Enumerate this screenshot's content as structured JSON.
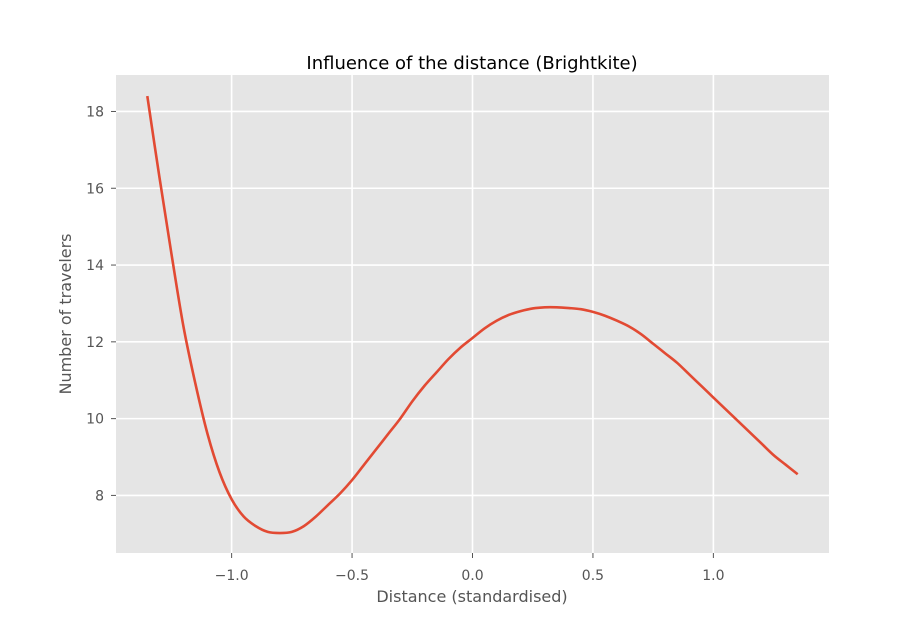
{
  "chart_data": {
    "type": "line",
    "title": "Influence of the distance (Brightkite)",
    "xlabel": "Distance (standardised)",
    "ylabel": "Number of travelers",
    "xlim": [
      -1.48,
      1.48
    ],
    "ylim": [
      6.5,
      18.95
    ],
    "xticks": [
      -1.0,
      -0.5,
      0.0,
      0.5,
      1.0
    ],
    "xtick_labels": [
      "−1.0",
      "−0.5",
      "0.0",
      "0.5",
      "1.0"
    ],
    "yticks": [
      8,
      10,
      12,
      14,
      16,
      18
    ],
    "ytick_labels": [
      "8",
      "10",
      "12",
      "14",
      "16",
      "18"
    ],
    "grid": true,
    "style": "ggplot",
    "colors": {
      "background": "#e5e5e5",
      "grid": "#ffffff",
      "line": "#e24a33",
      "tick_text": "#555555",
      "title": "#000000"
    },
    "series": [
      {
        "x": [
          -1.35,
          -1.3,
          -1.25,
          -1.2,
          -1.15,
          -1.1,
          -1.05,
          -1.0,
          -0.95,
          -0.9,
          -0.85,
          -0.8,
          -0.75,
          -0.7,
          -0.65,
          -0.6,
          -0.55,
          -0.5,
          -0.45,
          -0.4,
          -0.35,
          -0.3,
          -0.25,
          -0.2,
          -0.15,
          -0.1,
          -0.05,
          0.0,
          0.05,
          0.1,
          0.15,
          0.2,
          0.25,
          0.3,
          0.35,
          0.4,
          0.45,
          0.5,
          0.55,
          0.6,
          0.65,
          0.7,
          0.75,
          0.8,
          0.85,
          0.9,
          0.95,
          1.0,
          1.05,
          1.1,
          1.15,
          1.2,
          1.25,
          1.3,
          1.35
        ],
        "values": [
          18.4,
          16.3,
          14.3,
          12.4,
          10.9,
          9.6,
          8.6,
          7.9,
          7.45,
          7.2,
          7.05,
          7.02,
          7.05,
          7.2,
          7.45,
          7.75,
          8.05,
          8.4,
          8.8,
          9.2,
          9.6,
          10.0,
          10.45,
          10.85,
          11.2,
          11.55,
          11.85,
          12.1,
          12.35,
          12.55,
          12.7,
          12.8,
          12.87,
          12.9,
          12.9,
          12.88,
          12.85,
          12.78,
          12.68,
          12.55,
          12.4,
          12.2,
          11.95,
          11.7,
          11.45,
          11.15,
          10.85,
          10.55,
          10.25,
          9.95,
          9.65,
          9.35,
          9.05,
          8.8,
          8.55
        ]
      }
    ]
  }
}
